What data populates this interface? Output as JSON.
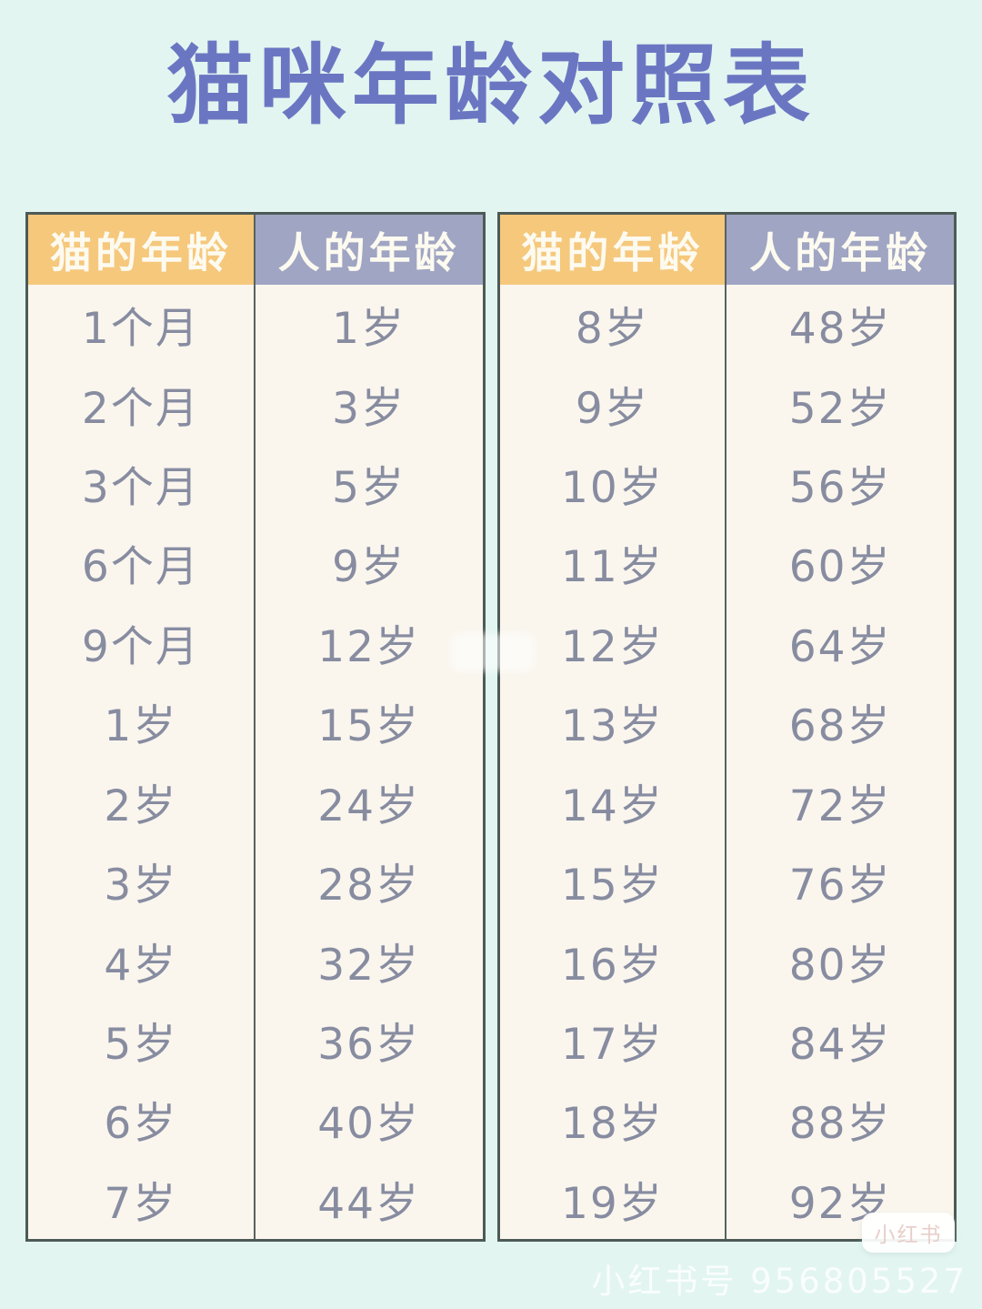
{
  "title": "猫咪年龄对照表",
  "chart_data": {
    "type": "table",
    "title": "猫咪年龄对照表",
    "columns": [
      "猫的年龄",
      "人的年龄"
    ],
    "tables": [
      {
        "rows": [
          [
            "1个月",
            "1岁"
          ],
          [
            "2个月",
            "3岁"
          ],
          [
            "3个月",
            "5岁"
          ],
          [
            "6个月",
            "9岁"
          ],
          [
            "9个月",
            "12岁"
          ],
          [
            "1岁",
            "15岁"
          ],
          [
            "2岁",
            "24岁"
          ],
          [
            "3岁",
            "28岁"
          ],
          [
            "4岁",
            "32岁"
          ],
          [
            "5岁",
            "36岁"
          ],
          [
            "6岁",
            "40岁"
          ],
          [
            "7岁",
            "44岁"
          ]
        ]
      },
      {
        "rows": [
          [
            "8岁",
            "48岁"
          ],
          [
            "9岁",
            "52岁"
          ],
          [
            "10岁",
            "56岁"
          ],
          [
            "11岁",
            "60岁"
          ],
          [
            "12岁",
            "64岁"
          ],
          [
            "13岁",
            "68岁"
          ],
          [
            "14岁",
            "72岁"
          ],
          [
            "15岁",
            "76岁"
          ],
          [
            "16岁",
            "80岁"
          ],
          [
            "17岁",
            "84岁"
          ],
          [
            "18岁",
            "88岁"
          ],
          [
            "19岁",
            "92岁"
          ]
        ]
      }
    ]
  },
  "footer": {
    "watermark": "小红书号 956805527",
    "badge": "小红书"
  },
  "colors": {
    "page_background": "#e2f5f1",
    "table_background": "#faf6ee",
    "cat_header_background": "#f5c87c",
    "human_header_background": "#9fa5c2",
    "header_text": "#fdfaf0",
    "title_text": "#6b76c2",
    "cell_text": "#878ca0",
    "table_border": "#4d5a56"
  }
}
